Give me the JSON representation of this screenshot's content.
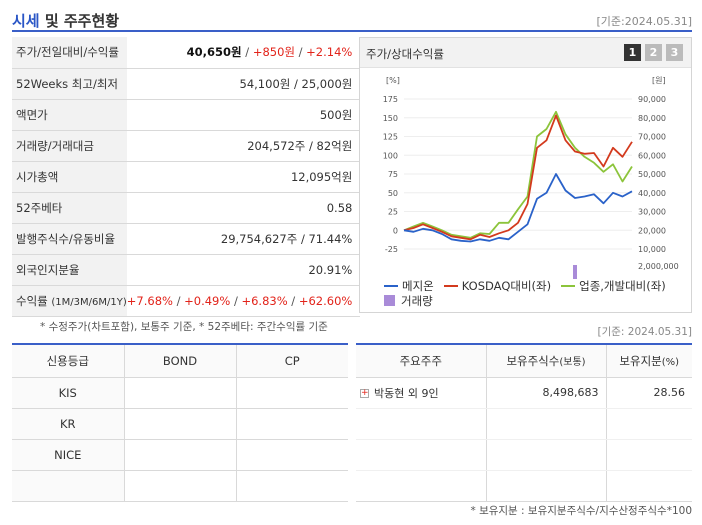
{
  "header": {
    "title_main": "시세",
    "title_rest": " 및 주주현황",
    "date": "[기준:2024.05.31]"
  },
  "quote": {
    "price_label": "주가/전일대비/수익률",
    "price": "40,650원",
    "change": "+850원",
    "change_pct": "+2.14%",
    "w52_label": "52Weeks 최고/최저",
    "w52_value": "54,100원 / 25,000원",
    "par_label": "액면가",
    "par_value": "500원",
    "volume_label": "거래량/거래대금",
    "volume_value": "204,572주 / 82억원",
    "mcap_label": "시가총액",
    "mcap_value": "12,095억원",
    "beta_label": "52주베타",
    "beta_value": "0.58",
    "shares_label": "발행주식수/유동비율",
    "shares_value": "29,754,627주 / 71.44%",
    "foreign_label": "외국인지분율",
    "foreign_value": "20.91%",
    "return_label": "수익률",
    "return_sub": "(1M/3M/6M/1Y)",
    "return_1m": "+7.68%",
    "return_3m": "+0.49%",
    "return_6m": "+6.83%",
    "return_1y": "+62.60%"
  },
  "notes": {
    "left": "* 수정주가(차트포함), 보통주 기준, * 52주베타: 주간수익률 기준",
    "right": "[기준: 2024.05.31]",
    "bottom": "* 보유지분 : 보유지분주식수/지수산정주식수*100"
  },
  "chart_panel": {
    "title": "주가/상대수익률",
    "tabs": [
      "1",
      "2",
      "3"
    ]
  },
  "chart_data": {
    "type": "line",
    "left_unit": "[%]",
    "right_unit": "[원]",
    "left_ticks": [
      175,
      150,
      125,
      100,
      75,
      50,
      25,
      0,
      -25
    ],
    "right_ticks": [
      "90,000",
      "80,000",
      "70,000",
      "60,000",
      "50,000",
      "40,000",
      "30,000",
      "20,000",
      "10,000"
    ],
    "volume_tick": "2,000,000",
    "x_labels": [
      "2022/05/31",
      "2023/03/31",
      "2024/01/31"
    ],
    "ylim": [
      -25,
      175
    ],
    "x_count": 24,
    "series": [
      {
        "name": "메지온",
        "color": "#2a62c9",
        "values": [
          0,
          -2,
          2,
          0,
          -5,
          -12,
          -14,
          -15,
          -12,
          -14,
          -10,
          -12,
          -2,
          8,
          42,
          50,
          75,
          53,
          43,
          45,
          48,
          36,
          50,
          45,
          52
        ]
      },
      {
        "name": "KOSDAQ대비(좌)",
        "color": "#d33a1e",
        "values": [
          0,
          3,
          8,
          3,
          -2,
          -8,
          -10,
          -12,
          -6,
          -9,
          -4,
          0,
          10,
          35,
          110,
          120,
          153,
          120,
          105,
          102,
          103,
          85,
          110,
          98,
          118
        ]
      },
      {
        "name": "업종,개발대비(좌)",
        "color": "#8cc43b",
        "values": [
          0,
          5,
          10,
          5,
          0,
          -6,
          -8,
          -10,
          -4,
          -5,
          10,
          10,
          28,
          45,
          125,
          135,
          158,
          128,
          110,
          98,
          90,
          78,
          88,
          65,
          85
        ]
      }
    ],
    "volume_series": {
      "name": "거래량",
      "color": "#a98bd8",
      "values": [
        300000,
        180000,
        150000,
        200000,
        150000,
        250000,
        180000,
        150000,
        300000,
        200000,
        400000,
        250000,
        700000,
        300000,
        350000,
        150000,
        500000,
        300000,
        2000000,
        250000,
        350000,
        300000,
        250000,
        200000,
        300000
      ],
      "max": 2000000
    }
  },
  "credit_table": {
    "headers": [
      "신용등급",
      "BOND",
      "CP"
    ],
    "rows": [
      [
        "KIS",
        "",
        ""
      ],
      [
        "KR",
        "",
        ""
      ],
      [
        "NICE",
        "",
        ""
      ],
      [
        "",
        "",
        ""
      ]
    ]
  },
  "holder_table": {
    "headers": [
      "주요주주",
      "보유주식수",
      "보유지분"
    ],
    "header_subs": [
      "",
      "(보통)",
      "(%)"
    ],
    "rows": [
      {
        "name": "박동현 외 9인",
        "shares": "8,498,683",
        "pct": "28.56"
      },
      {
        "name": "",
        "shares": "",
        "pct": ""
      },
      {
        "name": "",
        "shares": "",
        "pct": ""
      },
      {
        "name": "",
        "shares": "",
        "pct": ""
      }
    ]
  }
}
